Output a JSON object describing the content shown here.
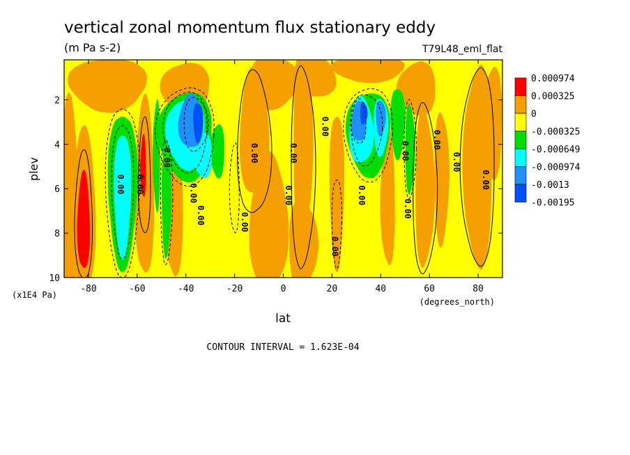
{
  "chart_data": {
    "type": "heatmap",
    "title": "vertical zonal momentum flux stationary eddy",
    "units": "(m Pa s-2)",
    "experiment": "T79L48_eml_flat",
    "xlabel": "lat",
    "xunits": "(degrees_north)",
    "ylabel": "plev",
    "yunits": "(x1E4 Pa)",
    "xlim": [
      -90,
      90
    ],
    "ylim": [
      10,
      0.2
    ],
    "x_ticks": [
      -80,
      -60,
      -40,
      -20,
      0,
      20,
      40,
      60,
      80
    ],
    "x_tick_labels": [
      "-80",
      "-60",
      "-40",
      "-20",
      "0",
      "20",
      "40",
      "60",
      "80"
    ],
    "y_ticks": [
      2,
      4,
      6,
      8,
      10
    ],
    "y_tick_labels": [
      "2",
      "4",
      "6",
      "8",
      "10"
    ],
    "contour_interval_text": "CONTOUR INTERVAL = 1.623E-04",
    "contour_label": "0.00",
    "legend": {
      "placement": "right",
      "entries": [
        {
          "label": "0.000974",
          "color": "#ff0000"
        },
        {
          "label": "0.000325",
          "color": "#f5a000"
        },
        {
          "label": "0",
          "color": "#ffff00"
        },
        {
          "label": "-0.000325",
          "color": "#00dd00"
        },
        {
          "label": "-0.000649",
          "color": "#00ffff"
        },
        {
          "label": "-0.000974",
          "color": "#1e90ff"
        },
        {
          "label": "-0.0013",
          "color": "#0050ff"
        },
        {
          "label": "-0.00195",
          "color": ""
        }
      ]
    },
    "levels": [
      -0.00195,
      -0.0013,
      -0.000974,
      -0.000649,
      -0.000325,
      0,
      0.000325,
      0.000974
    ],
    "level_colors": [
      "#0050ff",
      "#1e90ff",
      "#00ffff",
      "#00dd00",
      "#ffff00",
      "#f5a000",
      "#ff0000"
    ],
    "field_features": [
      {
        "lat": -82,
        "plev": 7.5,
        "value": 0.0011
      },
      {
        "lat": -66,
        "plev": 6.0,
        "value": -0.0008
      },
      {
        "lat": -57,
        "plev": 5.0,
        "value": 0.0007
      },
      {
        "lat": -36,
        "plev": 3.2,
        "value": -0.0015
      },
      {
        "lat": -30,
        "plev": 4.2,
        "value": -0.0007
      },
      {
        "lat": -10,
        "plev": 6.0,
        "value": 0.0004
      },
      {
        "lat": 8,
        "plev": 4.0,
        "value": 0.0004
      },
      {
        "lat": 33,
        "plev": 3.0,
        "value": -0.0012
      },
      {
        "lat": 40,
        "plev": 3.0,
        "value": -0.0009
      },
      {
        "lat": 58,
        "plev": 6.0,
        "value": 0.0005
      },
      {
        "lat": 80,
        "plev": 5.0,
        "value": 0.0004
      }
    ]
  }
}
